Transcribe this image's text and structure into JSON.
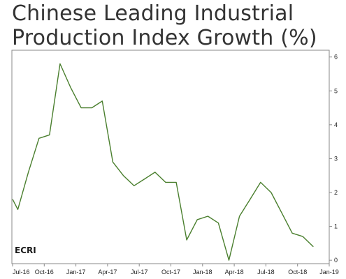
{
  "title": "Chinese Leading Industrial",
  "title_line2": "Production Index Growth",
  "title_unit": "(%)",
  "logo_text": "ECRI",
  "colors": {
    "line": "#4a7f2e",
    "frame": "#888888",
    "text": "#333333"
  },
  "chart_data": {
    "type": "line",
    "title": "Chinese Leading Industrial Production Index Growth (%)",
    "xlabel": "",
    "ylabel": "",
    "x_tick_labels": [
      "Jul-16",
      "Oct-16",
      "Jan-17",
      "Apr-17",
      "Jul-17",
      "Oct-17",
      "Jan-18",
      "Apr-18",
      "Jul-18",
      "Oct-18",
      "Jan-19"
    ],
    "y_ticks": [
      0,
      1,
      2,
      3,
      4,
      5,
      6
    ],
    "ylim": [
      -0.1,
      6.2
    ],
    "y_axis_side": "right",
    "grid": false,
    "series": [
      {
        "x": [
          0,
          0.5,
          1.5,
          2.5,
          3.5,
          4.5,
          5.5,
          6.5,
          7.5,
          8.5,
          9.5,
          10.5,
          11.5,
          12.5,
          13.5,
          14.5,
          15.5,
          16.5,
          17.5,
          18.5,
          19.5,
          20.5,
          21.5,
          22.5,
          23.5,
          24.5,
          25.5,
          26.5,
          27.5,
          28.5,
          29.5
        ],
        "values": [
          1.8,
          1.5,
          2.6,
          3.6,
          3.7,
          5.8,
          5.1,
          4.5,
          4.5,
          4.7,
          2.9,
          2.5,
          2.2,
          2.4,
          2.6,
          2.3,
          2.3,
          0.6,
          1.2,
          1.3,
          1.1,
          0.0,
          1.3,
          1.8,
          2.3,
          2.0,
          1.4,
          0.8,
          0.7,
          0.4,
          null
        ]
      }
    ]
  }
}
